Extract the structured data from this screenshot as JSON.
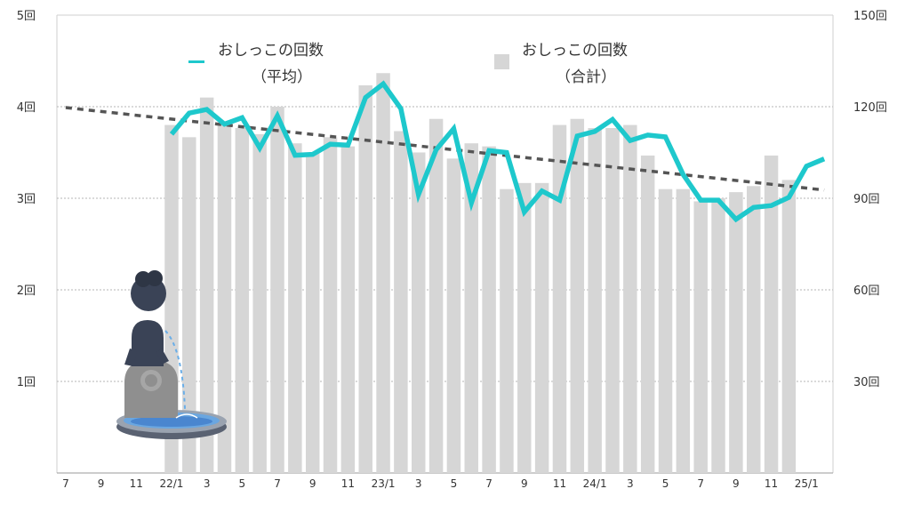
{
  "chart_data": {
    "type": "bar",
    "x_tick_labels": [
      "7",
      "9",
      "11",
      "22/1",
      "3",
      "5",
      "7",
      "9",
      "11",
      "23/1",
      "3",
      "5",
      "7",
      "9",
      "11",
      "24/1",
      "3",
      "5",
      "7",
      "9",
      "11",
      "25/1"
    ],
    "y_left": {
      "ticks": [
        "1回",
        "2回",
        "3回",
        "4回",
        "5回"
      ],
      "range": [
        0,
        5
      ]
    },
    "y_right": {
      "ticks": [
        "30回",
        "60回",
        "90回",
        "120回",
        "150回"
      ],
      "range": [
        0,
        150
      ]
    },
    "grid": true,
    "legend": {
      "line": {
        "line1": "おしっこの回数",
        "line2": "（平均）",
        "color": "#1ec8cc"
      },
      "bar": {
        "line1": "おしっこの回数",
        "line2": "（合計）",
        "color": "#d6d6d6"
      }
    },
    "series": [
      {
        "type": "bar",
        "axis": "right",
        "start_index": 6,
        "values": [
          114,
          110,
          123,
          114,
          113,
          111,
          120,
          108,
          105,
          110,
          107,
          127,
          131,
          112,
          105,
          116,
          103,
          108,
          107,
          93,
          95,
          95,
          114,
          116,
          113,
          113,
          114,
          104,
          93,
          93,
          89,
          90,
          92,
          94,
          104,
          96
        ]
      },
      {
        "type": "line",
        "axis": "left",
        "start_index": 6,
        "values": [
          3.7,
          3.93,
          3.97,
          3.81,
          3.88,
          3.55,
          3.9,
          3.47,
          3.48,
          3.59,
          3.58,
          4.1,
          4.25,
          3.98,
          3.04,
          3.53,
          3.76,
          2.95,
          3.52,
          3.5,
          2.85,
          3.08,
          2.98,
          3.68,
          3.73,
          3.86,
          3.63,
          3.69,
          3.67,
          3.26,
          2.98,
          2.98,
          2.77,
          2.9,
          2.92,
          3.01,
          3.35,
          3.43
        ]
      },
      {
        "type": "trend",
        "axis": "left",
        "start": 3.99,
        "end": 3.09,
        "color": "#555555"
      }
    ]
  }
}
